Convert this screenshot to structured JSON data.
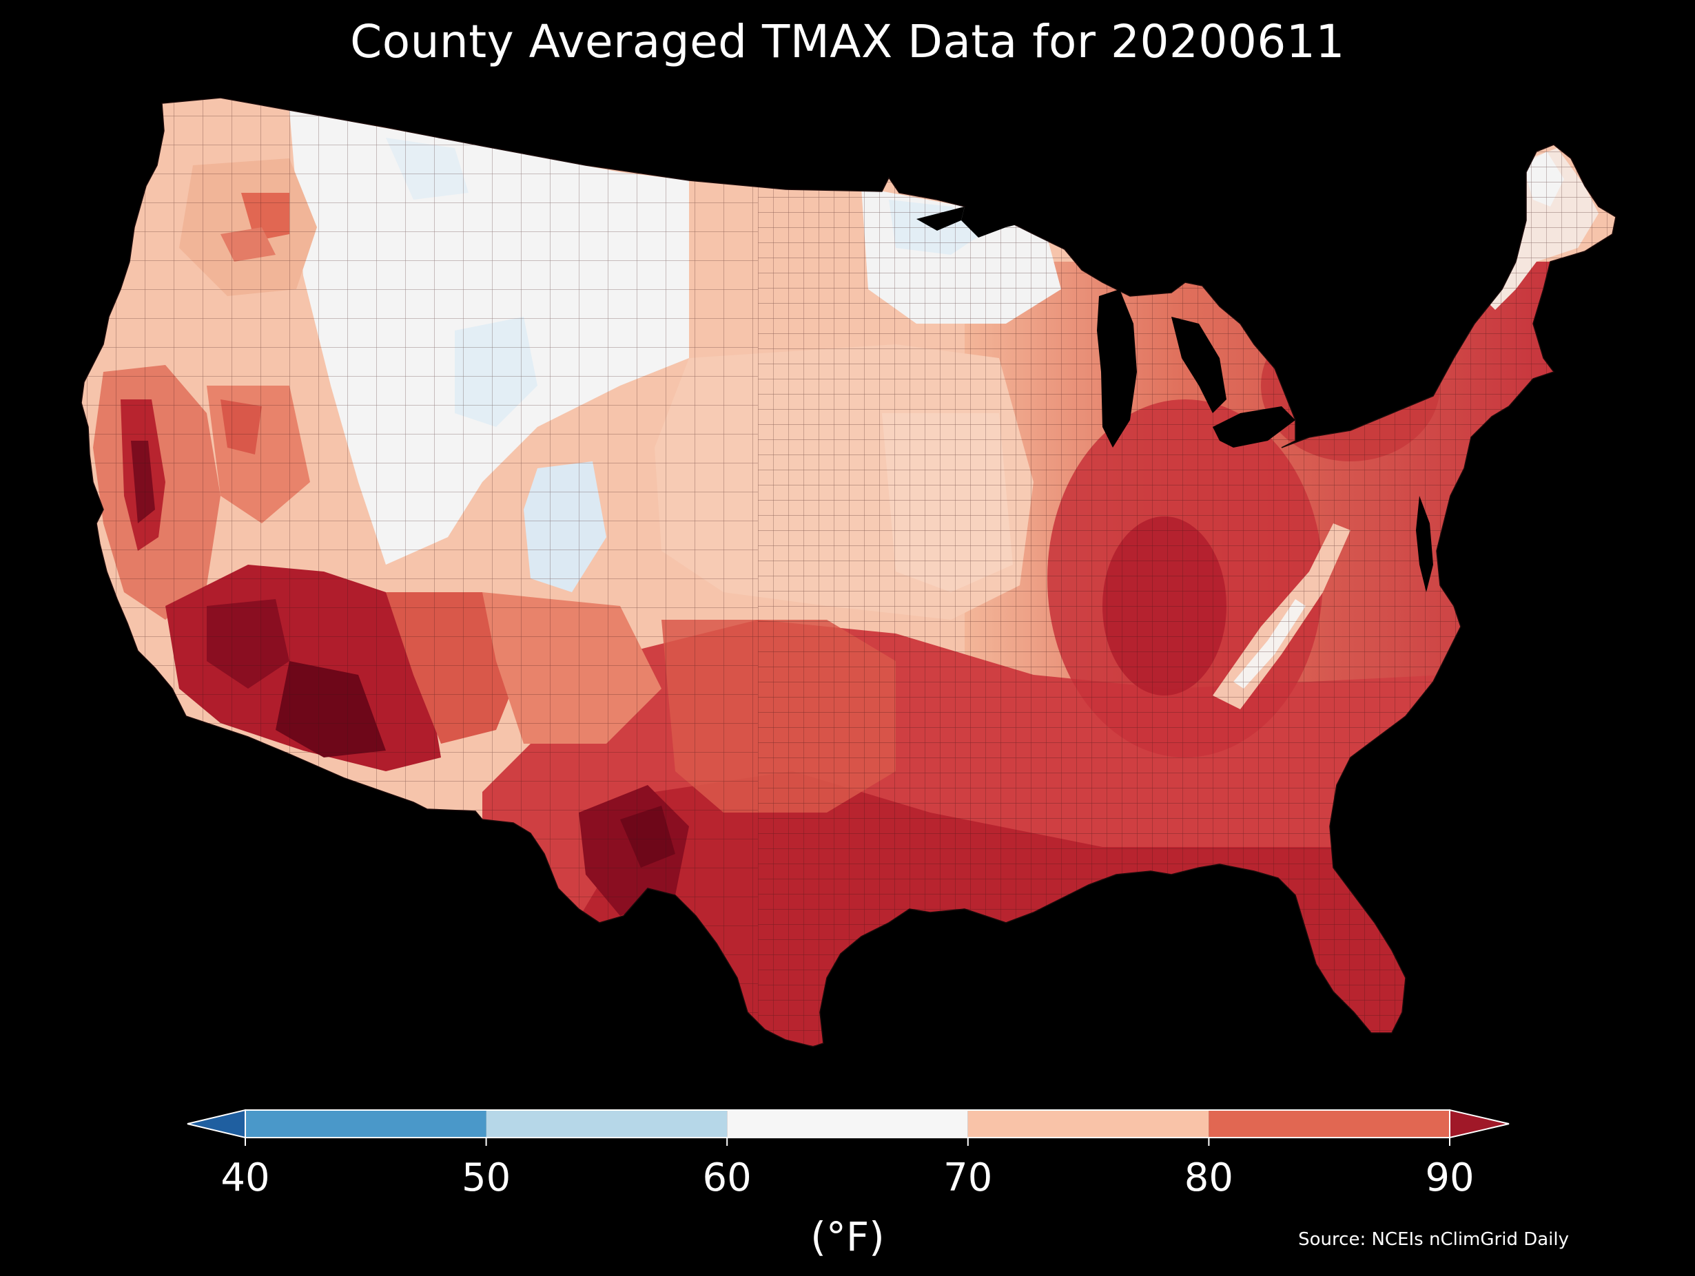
{
  "title": "County Averaged TMAX Data for 20200611",
  "colorbar": {
    "units": "(°F)",
    "ticks": [
      "40",
      "50",
      "60",
      "70",
      "80",
      "90"
    ],
    "bins": [
      {
        "range": [
          40,
          50
        ],
        "color": "#4a98c9"
      },
      {
        "range": [
          50,
          60
        ],
        "color": "#b6d7e8"
      },
      {
        "range": [
          60,
          70
        ],
        "color": "#f6f6f6"
      },
      {
        "range": [
          70,
          80
        ],
        "color": "#f9c3a8"
      },
      {
        "range": [
          80,
          90
        ],
        "color": "#e16752"
      }
    ],
    "under_color": "#1f5fa0",
    "over_color": "#a01828",
    "extend": "both"
  },
  "source": "Source: NCEIs nClimGrid Daily",
  "palette": {
    "background": "#000000",
    "water": "#000000",
    "cold": "#dce9f3",
    "neutral": "#f5f4f2",
    "light_warm": "#f6c4ab",
    "warm": "#eb9b7c",
    "hot": "#d9584a",
    "very_hot": "#b5202f",
    "extreme": "#6e0719",
    "border": "#2a0f0f"
  }
}
